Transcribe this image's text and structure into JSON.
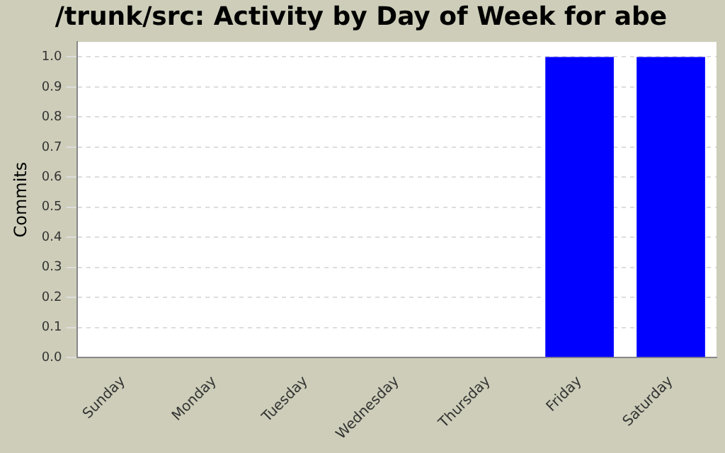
{
  "chart_data": {
    "type": "bar",
    "title": "/trunk/src: Activity by Day of Week for abe",
    "ylabel": "Commits",
    "categories": [
      "Sunday",
      "Monday",
      "Tuesday",
      "Wednesday",
      "Thursday",
      "Friday",
      "Saturday"
    ],
    "values": [
      0,
      0,
      0,
      0,
      0,
      1,
      1
    ],
    "color": "#0000ff",
    "ylim": [
      0,
      1.05
    ],
    "yticks": [
      {
        "value": 0,
        "label": "0.0"
      },
      {
        "value": 0.1,
        "label": "0.1"
      },
      {
        "value": 0.2,
        "label": "0.2"
      },
      {
        "value": 0.3,
        "label": "0.3"
      },
      {
        "value": 0.4,
        "label": "0.4"
      },
      {
        "value": 0.5,
        "label": "0.5"
      },
      {
        "value": 0.6,
        "label": "0.6"
      },
      {
        "value": 0.7,
        "label": "0.7"
      },
      {
        "value": 0.8,
        "label": "0.8"
      },
      {
        "value": 0.9,
        "label": "0.9"
      },
      {
        "value": 1,
        "label": "1.0"
      }
    ],
    "grid": "y",
    "legend": false
  }
}
